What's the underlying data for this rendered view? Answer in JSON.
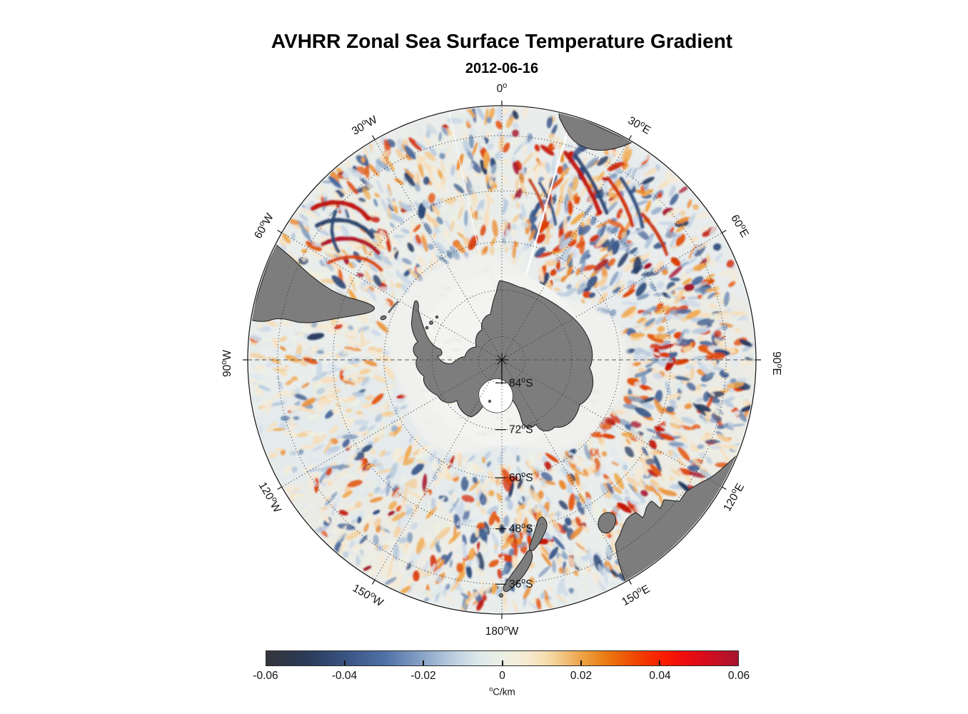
{
  "title": "AVHRR Zonal Sea Surface Temperature Gradient",
  "subtitle": "2012-06-16",
  "map": {
    "projection": "south-polar-stereographic",
    "deg_symbol": "o",
    "pole_marker": "*",
    "longitude_labels": [
      {
        "num": "0",
        "hem": "",
        "az": 0
      },
      {
        "num": "30",
        "hem": "E",
        "az": 30
      },
      {
        "num": "60",
        "hem": "E",
        "az": 60
      },
      {
        "num": "90",
        "hem": "E",
        "az": 90
      },
      {
        "num": "120",
        "hem": "E",
        "az": 120
      },
      {
        "num": "150",
        "hem": "E",
        "az": 150
      },
      {
        "num": "180",
        "hem": "W",
        "az": 180
      },
      {
        "num": "150",
        "hem": "W",
        "az": 210
      },
      {
        "num": "120",
        "hem": "W",
        "az": 240
      },
      {
        "num": "90",
        "hem": "W",
        "az": 270
      },
      {
        "num": "60",
        "hem": "W",
        "az": 300
      },
      {
        "num": "30",
        "hem": "W",
        "az": 330
      }
    ],
    "latitude_labels": [
      {
        "num": "84",
        "hem": "S",
        "lat": -84
      },
      {
        "num": "72",
        "hem": "S",
        "lat": -72
      },
      {
        "num": "60",
        "hem": "S",
        "lat": -60
      },
      {
        "num": "48",
        "hem": "S",
        "lat": -48
      },
      {
        "num": "36",
        "hem": "S",
        "lat": -36
      }
    ],
    "colors": {
      "land": "#7d7d7d",
      "coast": "#1c1c1c",
      "ice": "#f0f1ee",
      "ocean": "#e9edec",
      "grid": "#2e2e2e",
      "background": "#ffffff"
    }
  },
  "colorbar": {
    "min": -0.06,
    "max": 0.06,
    "tick_labels": [
      "-0.06",
      "-0.04",
      "-0.02",
      "0",
      "0.02",
      "0.04",
      "0.06"
    ],
    "tick_values": [
      -0.06,
      -0.04,
      -0.02,
      0,
      0.02,
      0.04,
      0.06
    ],
    "unit_sup": "o",
    "unit_text": "C/km",
    "stops": [
      {
        "v": -0.06,
        "c": "#34363b"
      },
      {
        "v": -0.05,
        "c": "#2b3a57"
      },
      {
        "v": -0.04,
        "c": "#395483"
      },
      {
        "v": -0.03,
        "c": "#4f70a4"
      },
      {
        "v": -0.02,
        "c": "#8aa4c8"
      },
      {
        "v": -0.013,
        "c": "#b8cbdf"
      },
      {
        "v": -0.006,
        "c": "#dde8ea"
      },
      {
        "v": -0.001,
        "c": "#e8efe5"
      },
      {
        "v": 0.003,
        "c": "#f1eedb"
      },
      {
        "v": 0.007,
        "c": "#f7e9cd"
      },
      {
        "v": 0.011,
        "c": "#f6dfae"
      },
      {
        "v": 0.016,
        "c": "#f1c07b"
      },
      {
        "v": 0.021,
        "c": "#ec9e3c"
      },
      {
        "v": 0.026,
        "c": "#eb7d15"
      },
      {
        "v": 0.031,
        "c": "#ec5b06"
      },
      {
        "v": 0.036,
        "c": "#f33800"
      },
      {
        "v": 0.041,
        "c": "#fa1c00"
      },
      {
        "v": 0.046,
        "c": "#ef0d0d"
      },
      {
        "v": 0.051,
        "c": "#da0b1b"
      },
      {
        "v": 0.056,
        "c": "#bf1026"
      },
      {
        "v": 0.06,
        "c": "#a6152e"
      }
    ]
  }
}
